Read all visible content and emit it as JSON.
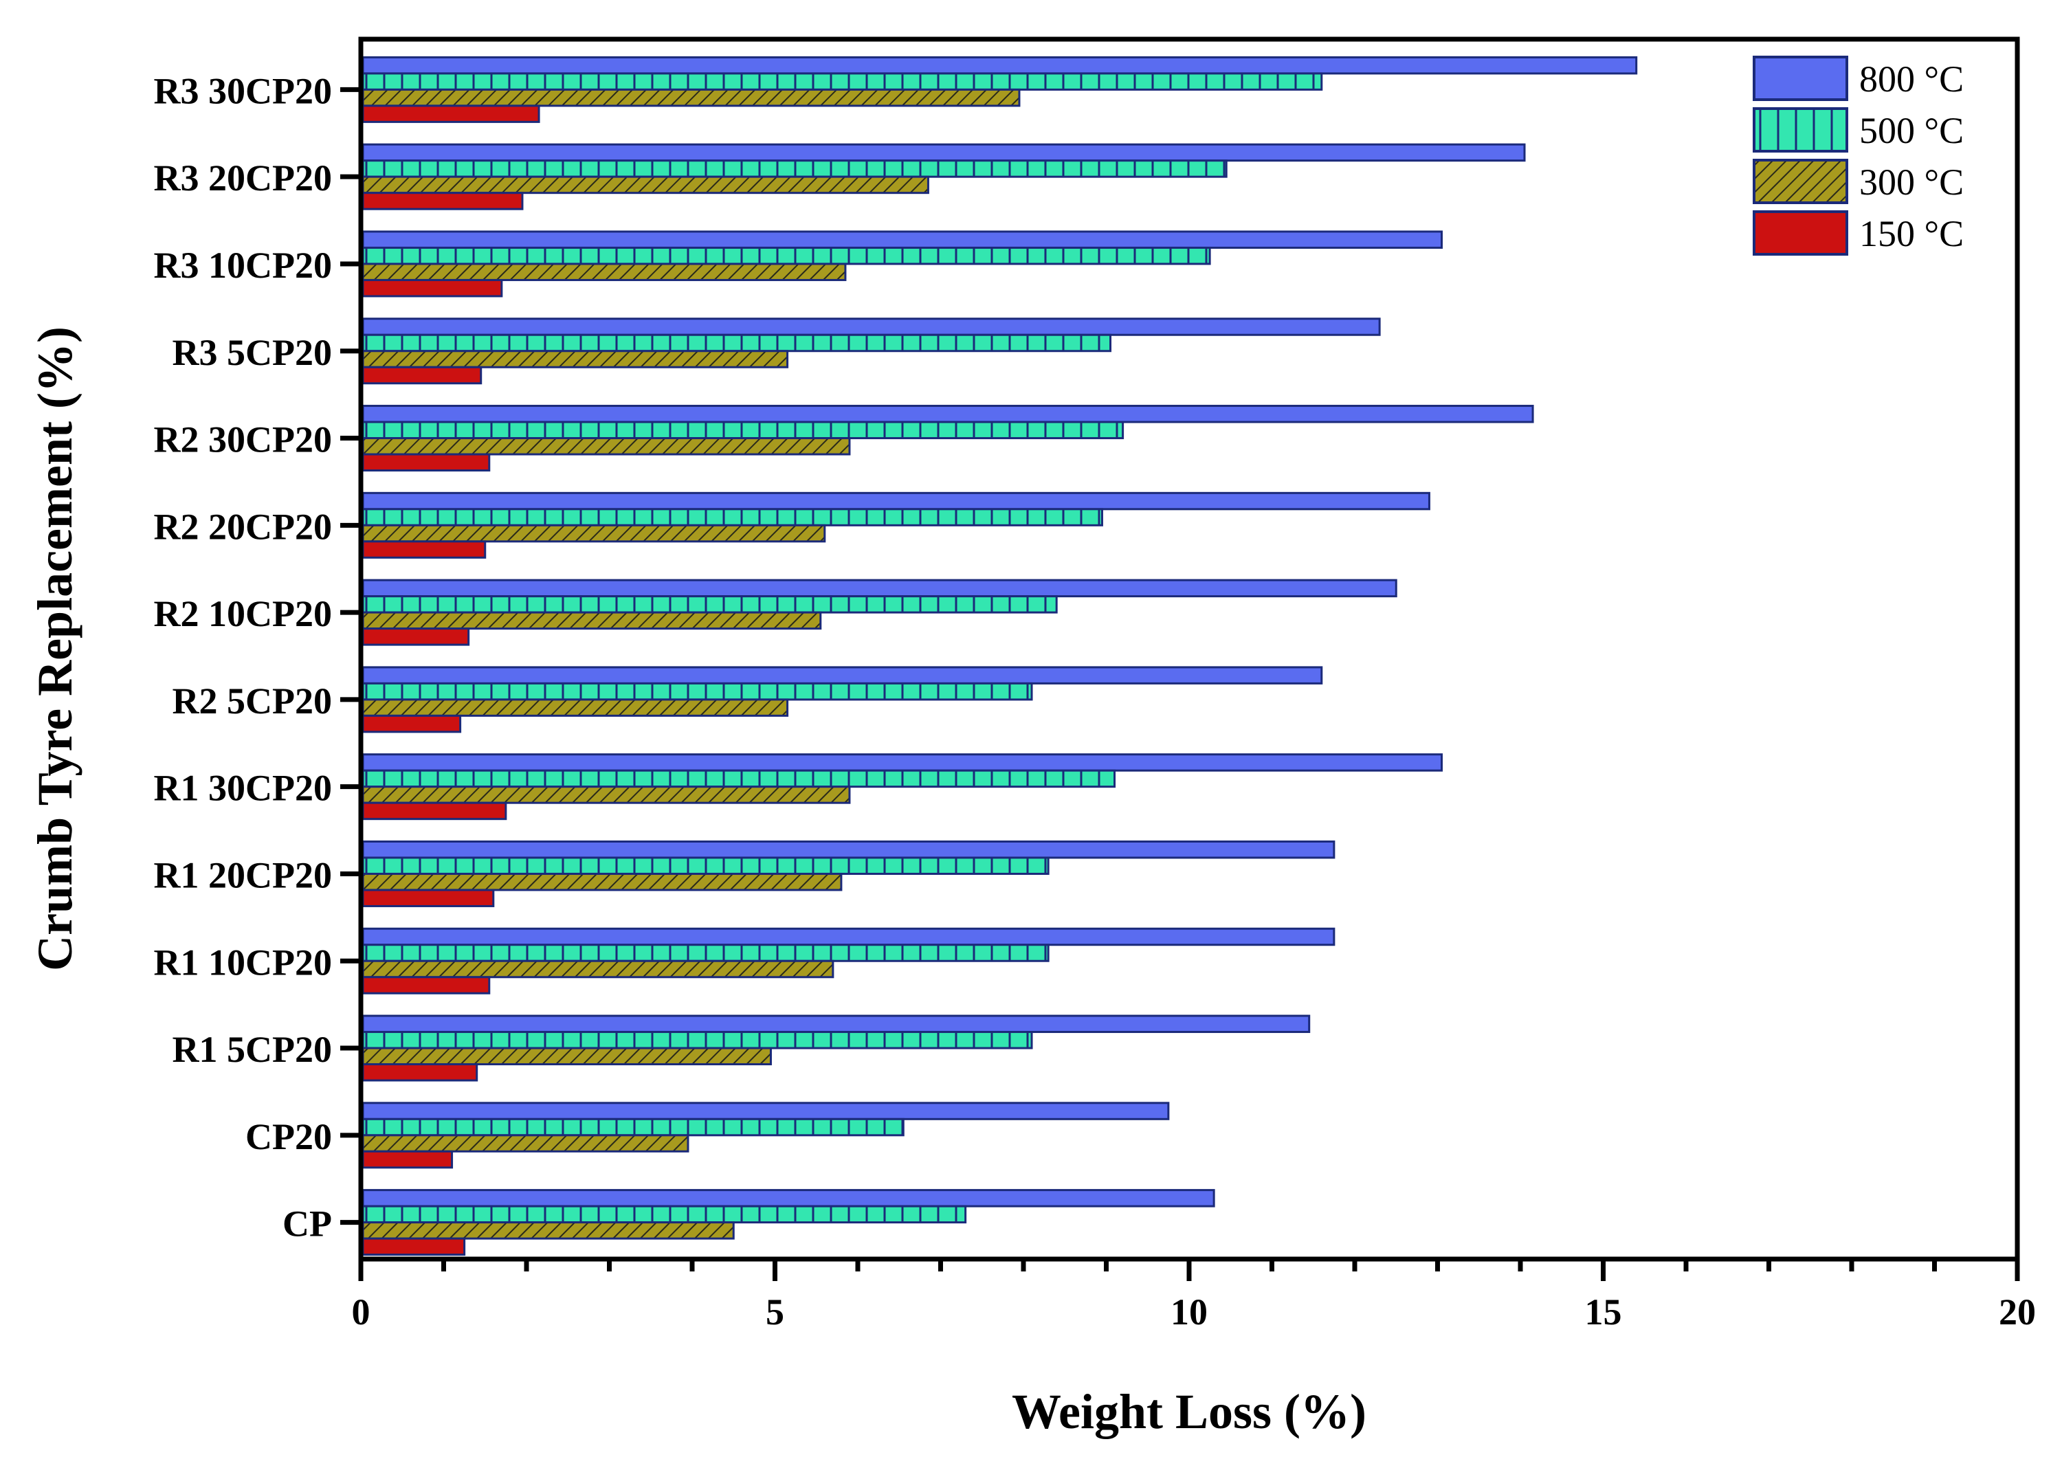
{
  "chart_data": {
    "type": "bar",
    "orientation": "horizontal",
    "xlabel": "Weight Loss (%)",
    "ylabel": "Crumb Tyre Replacement (%)",
    "xlim": [
      0,
      20
    ],
    "x_ticks": [
      "0",
      "5",
      "10",
      "15",
      "20"
    ],
    "categories": [
      "CP",
      "CP20",
      "R1 5CP20",
      "R1 10CP20",
      "R1 20CP20",
      "R1 30CP20",
      "R2 5CP20",
      "R2 10CP20",
      "R2 20CP20",
      "R2 30CP20",
      "R3 5CP20",
      "R3 10CP20",
      "R3 20CP20",
      "R3 30CP20"
    ],
    "legend_position": "top-right",
    "series": [
      {
        "name": "800 °C",
        "color": "#5a6cf0",
        "pattern": "solid",
        "values": [
          10.3,
          9.75,
          11.45,
          11.75,
          11.75,
          13.05,
          11.6,
          12.5,
          12.9,
          14.15,
          12.3,
          13.05,
          14.05,
          15.4
        ]
      },
      {
        "name": "500 °C",
        "color": "#33e6b0",
        "pattern": "vertical",
        "values": [
          7.3,
          6.55,
          8.1,
          8.3,
          8.3,
          9.1,
          8.1,
          8.4,
          8.95,
          9.2,
          9.05,
          10.25,
          10.45,
          11.6
        ]
      },
      {
        "name": "300 °C",
        "color": "#a89a1e",
        "pattern": "diagonal",
        "values": [
          4.5,
          3.95,
          4.95,
          5.7,
          5.8,
          5.9,
          5.15,
          5.55,
          5.6,
          5.9,
          5.15,
          5.85,
          6.85,
          7.95
        ]
      },
      {
        "name": "150 °C",
        "color": "#cc1111",
        "pattern": "solid",
        "values": [
          1.25,
          1.1,
          1.4,
          1.55,
          1.6,
          1.75,
          1.2,
          1.3,
          1.5,
          1.55,
          1.45,
          1.7,
          1.95,
          2.15
        ]
      }
    ]
  }
}
